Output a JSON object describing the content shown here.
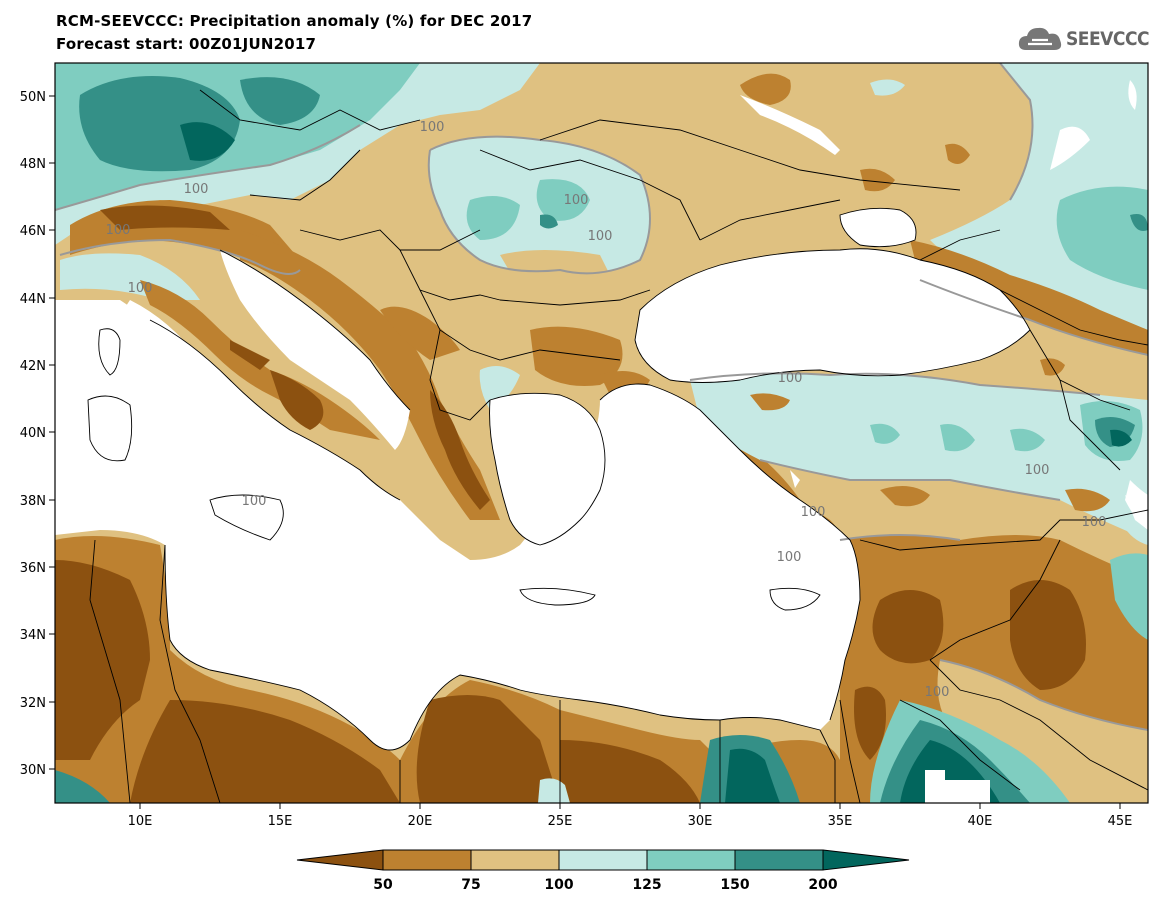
{
  "title": "RCM-SEEVCCC: Precipitation anomaly (%) for DEC 2017",
  "subtitle": "Forecast start: 00Z01JUN2017",
  "logo_text": "SEEVCCC",
  "logo_icon": "cloud-icon",
  "lat_labels": [
    "50N",
    "48N",
    "46N",
    "44N",
    "42N",
    "40N",
    "38N",
    "36N",
    "34N",
    "32N",
    "30N"
  ],
  "lon_labels": [
    "10E",
    "15E",
    "20E",
    "25E",
    "30E",
    "35E",
    "40E",
    "45E"
  ],
  "contour_labels": [
    "100",
    "100",
    "100",
    "100",
    "100",
    "100",
    "100",
    "100",
    "100",
    "100",
    "100",
    "100",
    "100"
  ],
  "colorbar": {
    "labels": [
      "50",
      "75",
      "100",
      "125",
      "150",
      "200"
    ],
    "colors": [
      "#8c5110",
      "#bd8130",
      "#dfc181",
      "#c6e9e4",
      "#7fcdc0",
      "#349087",
      "#02665d"
    ]
  },
  "colors": {
    "sea": "#ffffff",
    "border": "#000000",
    "contour": "#999999"
  }
}
